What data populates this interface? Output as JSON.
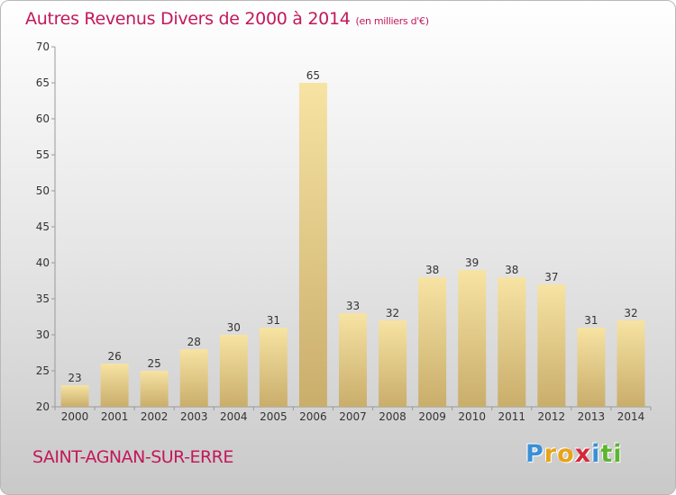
{
  "chart_data": {
    "type": "bar",
    "title": "Autres Revenus Divers de 2000 à 2014",
    "subtitle": "(en milliers d'€)",
    "categories": [
      "2000",
      "2001",
      "2002",
      "2003",
      "2004",
      "2005",
      "2006",
      "2007",
      "2008",
      "2009",
      "2010",
      "2011",
      "2012",
      "2013",
      "2014"
    ],
    "values": [
      23,
      26,
      25,
      28,
      30,
      31,
      65,
      33,
      32,
      38,
      39,
      38,
      37,
      31,
      32
    ],
    "ylim": [
      20,
      70
    ],
    "yticks": [
      20,
      25,
      30,
      35,
      40,
      45,
      50,
      55,
      60,
      65,
      70
    ],
    "xlabel": "",
    "ylabel": "",
    "grid": false,
    "colors": {
      "bar_light": "#f7e3a3",
      "bar_dark": "#c9ad6b",
      "title": "#c2185b"
    }
  },
  "footer": {
    "commune": "SAINT-AGNAN-SUR-ERRE",
    "logo_letters": [
      {
        "ch": "P",
        "color": "#3b8fd6"
      },
      {
        "ch": "r",
        "color": "#e8a317"
      },
      {
        "ch": "o",
        "color": "#e8a317"
      },
      {
        "ch": "x",
        "color": "#d62839"
      },
      {
        "ch": "i",
        "color": "#3b8fd6"
      },
      {
        "ch": "t",
        "color": "#5cb531"
      },
      {
        "ch": "i",
        "color": "#5cb531"
      }
    ]
  }
}
